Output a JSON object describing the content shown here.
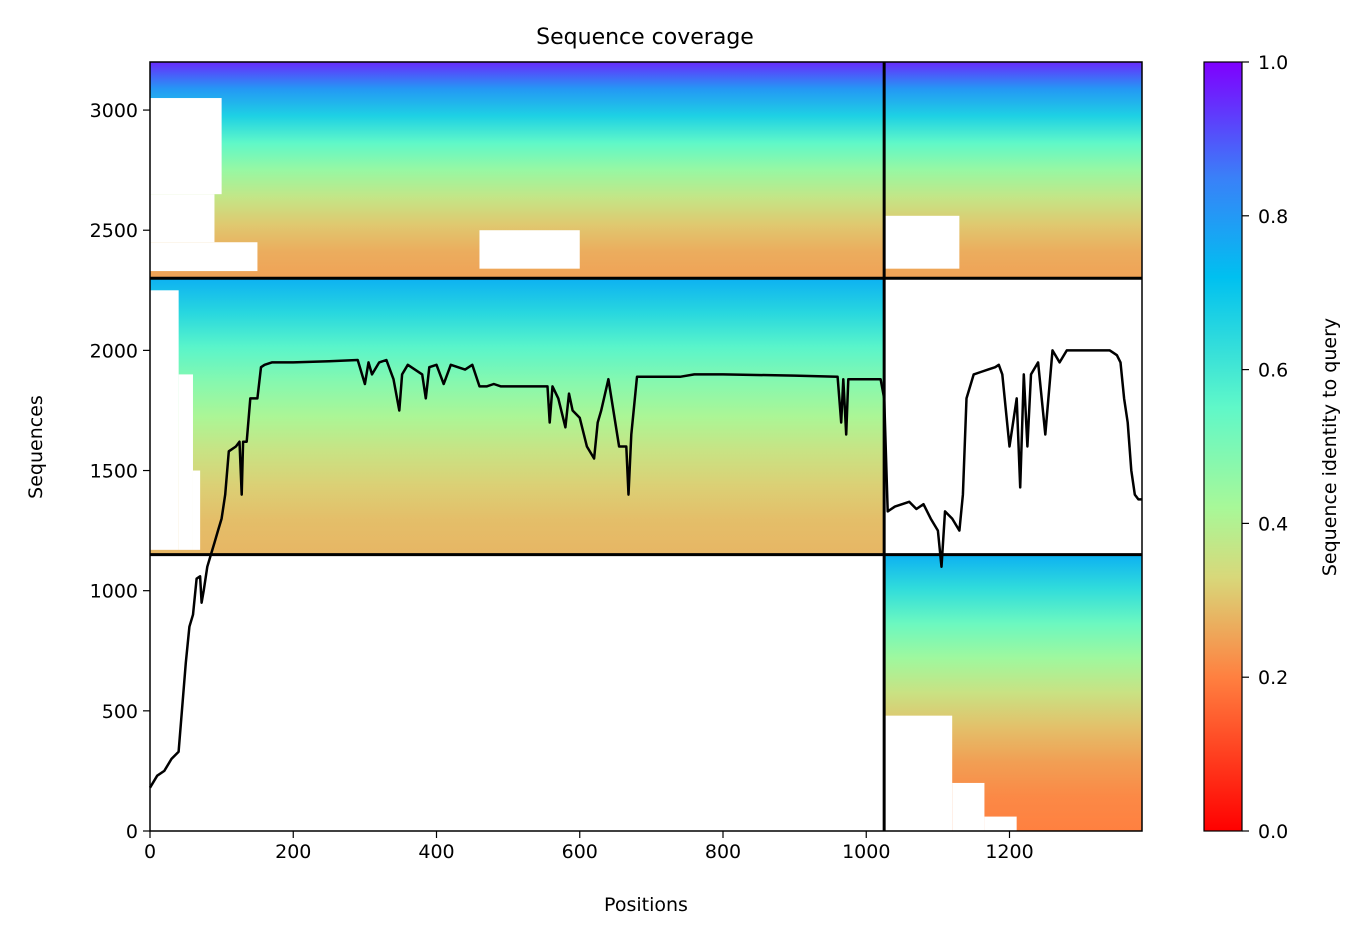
{
  "chart_data": {
    "type": "heatmap",
    "title": "Sequence coverage",
    "xlabel": "Positions",
    "ylabel": "Sequences",
    "xlim": [
      0,
      1385
    ],
    "ylim": [
      0,
      3200
    ],
    "x_ticks": [
      0,
      200,
      400,
      600,
      800,
      1000,
      1200
    ],
    "y_ticks": [
      0,
      500,
      1000,
      1500,
      2000,
      2500,
      3000
    ],
    "colorbar": {
      "label": "Sequence identity to query",
      "range": [
        0.0,
        1.0
      ],
      "ticks": [
        "0.0",
        "0.2",
        "0.4",
        "0.6",
        "0.8",
        "1.0"
      ],
      "colormap": "rainbow_r",
      "stops": [
        "#ff0000",
        "#ff8040",
        "#d8d87a",
        "#80ffb4",
        "#00c0f0",
        "#7f00ff"
      ]
    },
    "divider_color": "#000000",
    "chain_boundaries_x": [
      1025
    ],
    "group_boundaries_y": [
      1150,
      2300
    ],
    "blocks": [
      {
        "group": "paired",
        "y_range": [
          2300,
          3200
        ],
        "x_range": [
          0,
          1025
        ],
        "identity_top": 0.95,
        "identity_bottom": 0.25
      },
      {
        "group": "paired",
        "y_range": [
          2300,
          3200
        ],
        "x_range": [
          1025,
          1385
        ],
        "identity_top": 0.95,
        "identity_bottom": 0.25
      },
      {
        "group": "unpaired-chain-1",
        "y_range": [
          1150,
          2300
        ],
        "x_range": [
          0,
          1025
        ],
        "identity_top": 0.75,
        "identity_bottom": 0.28
      },
      {
        "group": "unpaired-chain-2",
        "y_range": [
          0,
          1150
        ],
        "x_range": [
          1025,
          1385
        ],
        "identity_top": 0.75,
        "identity_bottom": 0.2
      }
    ],
    "series": [
      {
        "x": [
          0,
          10,
          20,
          30,
          40,
          50,
          55,
          60,
          65,
          70,
          72,
          75,
          80,
          85,
          90,
          95,
          100,
          105,
          110,
          120,
          125,
          128,
          130,
          135,
          140,
          150,
          155,
          160,
          170,
          200,
          250,
          290,
          300,
          305,
          310,
          320,
          330,
          340,
          348,
          352,
          360,
          380,
          385,
          390,
          400,
          410,
          420,
          440,
          450,
          460,
          470,
          480,
          490,
          500,
          530,
          555,
          558,
          562,
          570,
          580,
          585,
          590,
          600,
          610,
          620,
          625,
          630,
          640,
          655,
          665,
          668,
          672,
          680,
          700,
          740,
          760,
          800,
          900,
          960,
          965,
          968,
          972,
          975,
          980,
          1000,
          1020,
          1025,
          1030,
          1040,
          1050,
          1060,
          1070,
          1080,
          1090,
          1100,
          1105,
          1110,
          1120,
          1130,
          1135,
          1140,
          1150,
          1160,
          1170,
          1180,
          1185,
          1190,
          1200,
          1210,
          1215,
          1220,
          1225,
          1230,
          1240,
          1250,
          1260,
          1270,
          1280,
          1300,
          1320,
          1330,
          1340,
          1345,
          1350,
          1355,
          1360,
          1365,
          1370,
          1375,
          1380,
          1385
        ],
        "y": [
          180,
          230,
          250,
          300,
          330,
          700,
          850,
          900,
          1050,
          1060,
          950,
          1000,
          1100,
          1150,
          1200,
          1250,
          1300,
          1400,
          1580,
          1600,
          1620,
          1400,
          1620,
          1620,
          1800,
          1800,
          1930,
          1940,
          1950,
          1950,
          1955,
          1960,
          1860,
          1950,
          1900,
          1950,
          1960,
          1880,
          1750,
          1900,
          1940,
          1900,
          1800,
          1930,
          1940,
          1860,
          1940,
          1920,
          1940,
          1850,
          1850,
          1860,
          1850,
          1850,
          1850,
          1850,
          1700,
          1850,
          1800,
          1680,
          1820,
          1750,
          1720,
          1600,
          1550,
          1700,
          1750,
          1880,
          1600,
          1600,
          1400,
          1650,
          1890,
          1890,
          1890,
          1900,
          1900,
          1895,
          1890,
          1700,
          1880,
          1650,
          1880,
          1880,
          1880,
          1880,
          1800,
          1330,
          1350,
          1360,
          1370,
          1340,
          1360,
          1300,
          1250,
          1100,
          1330,
          1300,
          1250,
          1400,
          1800,
          1900,
          1910,
          1920,
          1930,
          1940,
          1900,
          1600,
          1800,
          1430,
          1900,
          1600,
          1900,
          1950,
          1650,
          2000,
          1950,
          2000,
          2000,
          2000,
          2000,
          2000,
          1990,
          1980,
          1950,
          1800,
          1700,
          1500,
          1400,
          1380,
          1380
        ]
      }
    ]
  }
}
